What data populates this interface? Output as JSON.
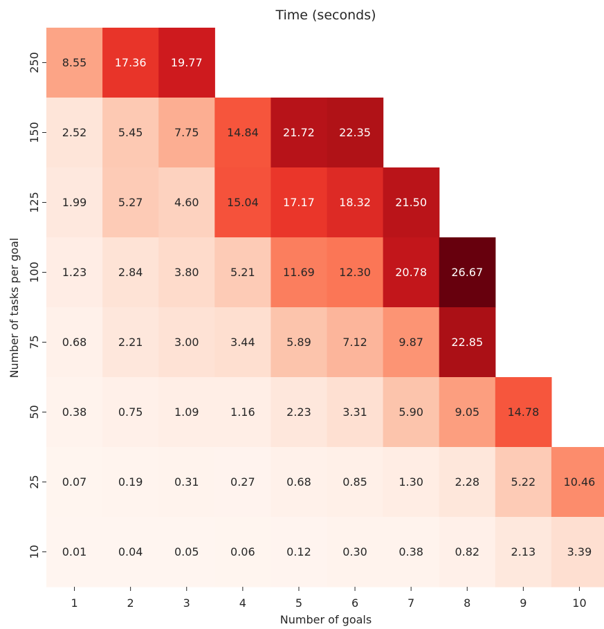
{
  "chart_data": {
    "type": "heatmap",
    "title": "Time (seconds)",
    "xlabel": "Number of goals",
    "ylabel": "Number of tasks per goal",
    "x_categories": [
      "1",
      "2",
      "3",
      "4",
      "5",
      "6",
      "7",
      "8",
      "9",
      "10"
    ],
    "y_categories": [
      "250",
      "150",
      "125",
      "100",
      "75",
      "50",
      "25",
      "10"
    ],
    "values": [
      [
        8.55,
        17.36,
        19.77,
        null,
        null,
        null,
        null,
        null,
        null,
        null
      ],
      [
        2.52,
        5.45,
        7.75,
        14.84,
        21.72,
        22.35,
        null,
        null,
        null,
        null
      ],
      [
        1.99,
        5.27,
        4.6,
        15.04,
        17.17,
        18.32,
        21.5,
        null,
        null,
        null
      ],
      [
        1.23,
        2.84,
        3.8,
        5.21,
        11.69,
        12.3,
        20.78,
        26.67,
        null,
        null
      ],
      [
        0.68,
        2.21,
        3.0,
        3.44,
        5.89,
        7.12,
        9.87,
        22.85,
        null,
        null
      ],
      [
        0.38,
        0.75,
        1.09,
        1.16,
        2.23,
        3.31,
        5.9,
        9.05,
        14.78,
        null
      ],
      [
        0.07,
        0.19,
        0.31,
        0.27,
        0.68,
        0.85,
        1.3,
        2.28,
        5.22,
        10.46
      ],
      [
        0.01,
        0.04,
        0.05,
        0.06,
        0.12,
        0.3,
        0.38,
        0.82,
        2.13,
        3.39
      ]
    ],
    "colormap": "Reds",
    "value_range": [
      0,
      26.67
    ],
    "colorbar": false,
    "grid": false,
    "colors": {
      "low": "#fff5f0",
      "high": "#67000d",
      "text_dark": "#262626",
      "text_light": "#ffffff"
    }
  }
}
